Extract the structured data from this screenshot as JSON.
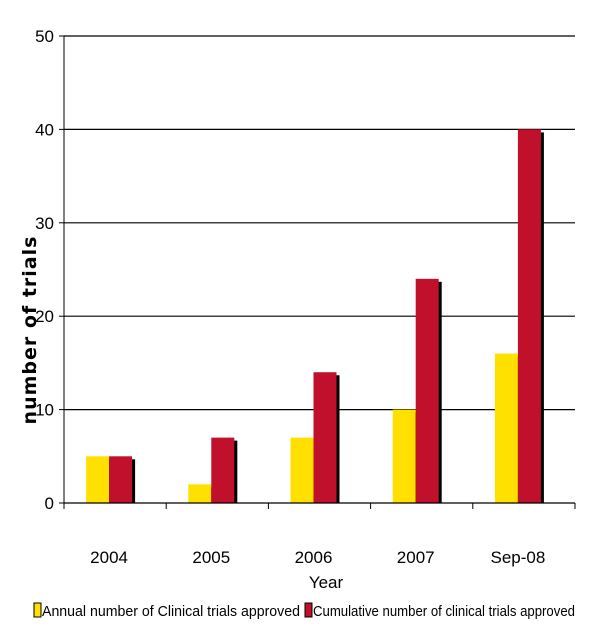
{
  "chart_data": {
    "type": "bar",
    "title": "",
    "xlabel": "Year",
    "ylabel": "number of trials",
    "ylim": [
      0,
      50
    ],
    "yticks": [
      0,
      10,
      20,
      30,
      40,
      50
    ],
    "grid": true,
    "legend_position": "bottom",
    "categories": [
      "2004",
      "2005",
      "2006",
      "2007",
      "Sep-08"
    ],
    "series": [
      {
        "name": "Annual number of Clinical trials approved",
        "values": [
          5,
          2,
          7,
          10,
          16
        ],
        "color": "#FFE000"
      },
      {
        "name": "Cumulative number of clinical trials approved",
        "values": [
          5,
          7,
          14,
          24,
          40
        ],
        "color": "#C0102B"
      }
    ]
  }
}
